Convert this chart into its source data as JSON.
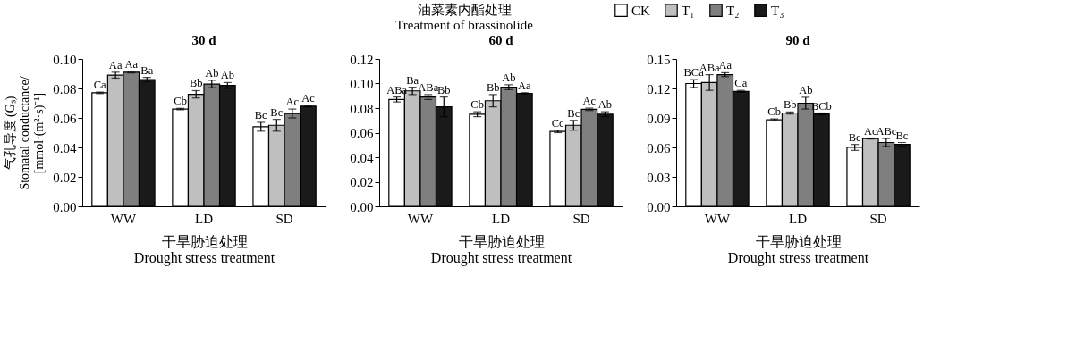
{
  "chart_data": [
    {
      "type": "bar",
      "title": "30 d",
      "xlabel": "干旱胁迫处理\nDrought stress treatment",
      "ylabel": "气孔导度 (Gₛ)\nStomatal conductance/\n[mmol·(m²·s)⁻¹]",
      "legend_title": "油菜素内酯处理\nTreatment of brassinolide",
      "legend": "top",
      "grid": false,
      "categories": [
        "WW",
        "LD",
        "SD"
      ],
      "ylim": [
        0,
        0.1
      ],
      "yticks": [
        {
          "value": 0,
          "label": "0.00"
        },
        {
          "value": 0.02,
          "label": "0.02"
        },
        {
          "value": 0.04,
          "label": "0.04"
        },
        {
          "value": 0.06,
          "label": "0.06"
        },
        {
          "value": 0.08,
          "label": "0.08"
        },
        {
          "value": 0.1,
          "label": "0.10"
        }
      ],
      "series": [
        {
          "name": "CK",
          "color": "#ffffff",
          "values": [
            0.077,
            0.066,
            0.054
          ],
          "errors": [
            0.0005,
            0.0005,
            0.003
          ],
          "value_labels": [
            "Ca",
            "Cb",
            "Bc"
          ]
        },
        {
          "name": "T₁",
          "color": "#bfbfbf",
          "values": [
            0.089,
            0.076,
            0.055
          ],
          "errors": [
            0.002,
            0.0025,
            0.004
          ],
          "value_labels": [
            "Aa",
            "Bb",
            "Bc"
          ]
        },
        {
          "name": "T₂",
          "color": "#7f7f7f",
          "values": [
            0.091,
            0.083,
            0.063
          ],
          "errors": [
            0.0005,
            0.0025,
            0.003
          ],
          "value_labels": [
            "Aa",
            "Ab",
            "Ac"
          ]
        },
        {
          "name": "T₃",
          "color": "#1a1a1a",
          "values": [
            0.086,
            0.082,
            0.068
          ],
          "errors": [
            0.0015,
            0.002,
            0.0005
          ],
          "value_labels": [
            "Ba",
            "Ab",
            "Ac"
          ]
        }
      ]
    },
    {
      "type": "bar",
      "title": "60 d",
      "xlabel": "干旱胁迫处理\nDrought stress treatment",
      "legend": "top",
      "grid": false,
      "categories": [
        "WW",
        "LD",
        "SD"
      ],
      "ylim": [
        0,
        0.12
      ],
      "yticks": [
        {
          "value": 0,
          "label": "0.00"
        },
        {
          "value": 0.02,
          "label": "0.02"
        },
        {
          "value": 0.04,
          "label": "0.04"
        },
        {
          "value": 0.06,
          "label": "0.06"
        },
        {
          "value": 0.08,
          "label": "0.08"
        },
        {
          "value": 0.1,
          "label": "0.10"
        },
        {
          "value": 0.12,
          "label": "0.12"
        }
      ],
      "series": [
        {
          "name": "CK",
          "color": "#ffffff",
          "values": [
            0.087,
            0.075,
            0.061
          ],
          "errors": [
            0.002,
            0.002,
            0.001
          ],
          "value_labels": [
            "ABa",
            "Cb",
            "Cc"
          ]
        },
        {
          "name": "T₁",
          "color": "#bfbfbf",
          "values": [
            0.094,
            0.086,
            0.066
          ],
          "errors": [
            0.003,
            0.005,
            0.004
          ],
          "value_labels": [
            "Ba",
            "Bb",
            "Bc"
          ]
        },
        {
          "name": "T₂",
          "color": "#7f7f7f",
          "values": [
            0.089,
            0.097,
            0.079
          ],
          "errors": [
            0.002,
            0.002,
            0.001
          ],
          "value_labels": [
            "ABa",
            "Ab",
            "Ac"
          ]
        },
        {
          "name": "T₃",
          "color": "#1a1a1a",
          "values": [
            0.081,
            0.092,
            0.075
          ],
          "errors": [
            0.008,
            0.0005,
            0.002
          ],
          "value_labels": [
            "Bb",
            "Aa",
            "Ab"
          ]
        }
      ]
    },
    {
      "type": "bar",
      "title": "90 d",
      "xlabel": "干旱胁迫处理\nDrought stress treatment",
      "legend": "top",
      "grid": false,
      "categories": [
        "WW",
        "LD",
        "SD"
      ],
      "ylim": [
        0,
        0.15
      ],
      "yticks": [
        {
          "value": 0,
          "label": "0.00"
        },
        {
          "value": 0.03,
          "label": "0.03"
        },
        {
          "value": 0.06,
          "label": "0.06"
        },
        {
          "value": 0.09,
          "label": "0.09"
        },
        {
          "value": 0.12,
          "label": "0.12"
        },
        {
          "value": 0.15,
          "label": "0.15"
        }
      ],
      "series": [
        {
          "name": "CK",
          "color": "#ffffff",
          "values": [
            0.125,
            0.088,
            0.06
          ],
          "errors": [
            0.004,
            0.001,
            0.003
          ],
          "value_labels": [
            "BCa",
            "Cb",
            "Bc"
          ]
        },
        {
          "name": "T₁",
          "color": "#bfbfbf",
          "values": [
            0.126,
            0.095,
            0.069
          ],
          "errors": [
            0.008,
            0.001,
            0.0005
          ],
          "value_labels": [
            "ABa",
            "Bb",
            "Ac"
          ]
        },
        {
          "name": "T₂",
          "color": "#7f7f7f",
          "values": [
            0.134,
            0.105,
            0.065
          ],
          "errors": [
            0.002,
            0.006,
            0.004
          ],
          "value_labels": [
            "Aa",
            "Ab",
            "ABc"
          ]
        },
        {
          "name": "T₃",
          "color": "#1a1a1a",
          "values": [
            0.117,
            0.094,
            0.063
          ],
          "errors": [
            0.001,
            0.001,
            0.002
          ],
          "value_labels": [
            "Ca",
            "BCb",
            "Bc"
          ]
        }
      ]
    }
  ]
}
